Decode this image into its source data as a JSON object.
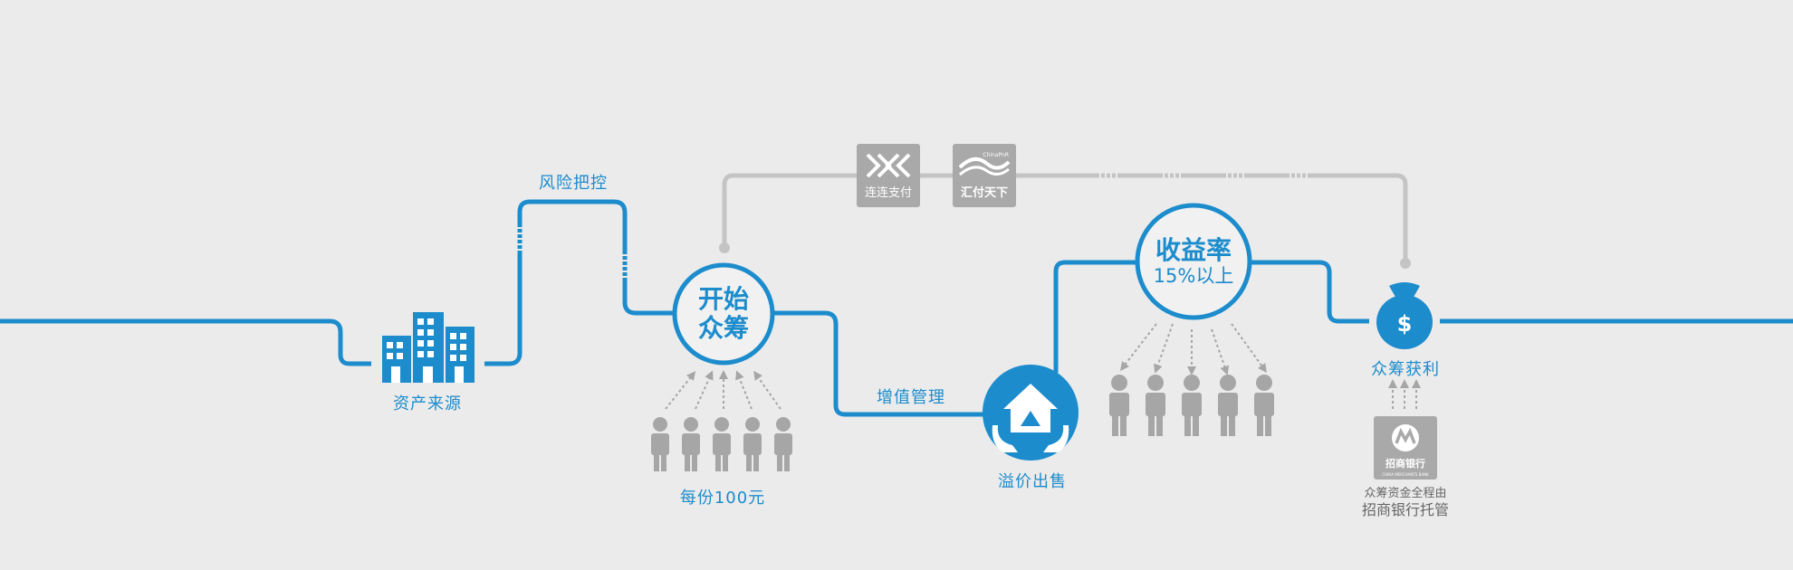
{
  "colors": {
    "brand_blue": "#1c8ccd",
    "gray_line": "#c4c4c4",
    "person_gray": "#a6a6a6",
    "logo_gray": "#a9a9a9",
    "background": "#ebebeb"
  },
  "labels": {
    "asset_source": "资产来源",
    "risk_control": "风险把控",
    "per_share": "每份100元",
    "value_management": "增值管理",
    "premium_sale": "溢价出售",
    "crowdfunding_profit": "众筹获利"
  },
  "start_circle": {
    "line1": "开始",
    "line2": "众筹"
  },
  "return_circle": {
    "line1": "收益率",
    "line2": "15%以上"
  },
  "payment_partners": [
    {
      "caption": "连连支付",
      "icon": "lianlian-logo-icon"
    },
    {
      "caption": "汇付天下",
      "icon": "chinapnr-logo-icon",
      "brand_text": "ChinaPnR"
    }
  ],
  "bank": {
    "caption": "招商银行",
    "icon": "cmb-logo-icon",
    "subtitle": "CHINA MERCHANTS BANK",
    "note_line1": "众筹资金全程由",
    "note_line2": "招商银行托管"
  },
  "icons": {
    "buildings": "buildings-icon",
    "investor": "investor-person-icon",
    "house_hands": "house-in-hands-icon",
    "money_bag": "money-bag-icon",
    "money_bag_symbol": "$"
  }
}
